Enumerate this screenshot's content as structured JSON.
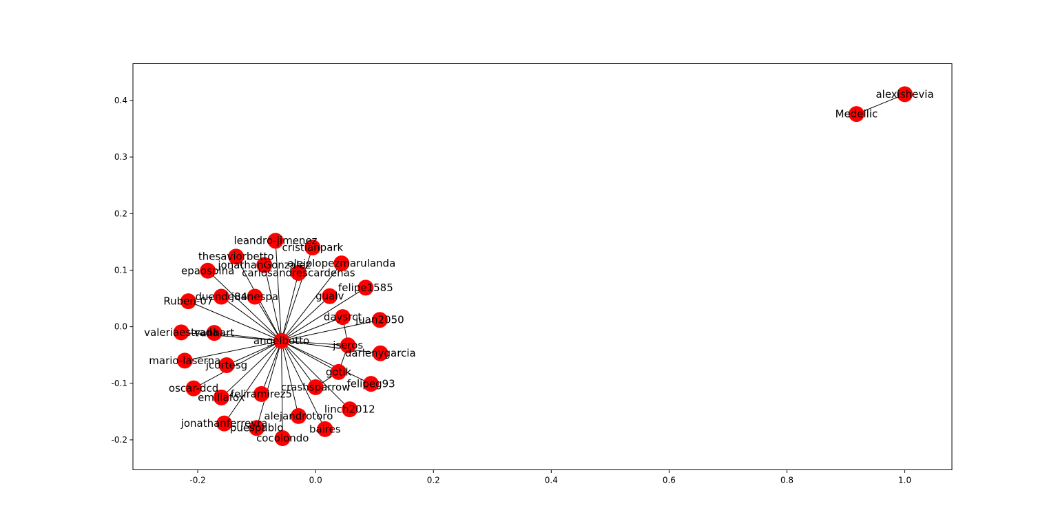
{
  "chart_data": {
    "type": "network",
    "xlim": [
      -0.31,
      1.08
    ],
    "ylim": [
      -0.253,
      0.465
    ],
    "x_ticks": [
      "-0.2",
      "0.0",
      "0.2",
      "0.4",
      "0.6",
      "0.8",
      "1.0"
    ],
    "x_tick_values": [
      -0.2,
      0.0,
      0.2,
      0.4,
      0.6,
      0.8,
      1.0
    ],
    "y_ticks": [
      "-0.2",
      "-0.1",
      "0.0",
      "0.1",
      "0.2",
      "0.3",
      "0.4"
    ],
    "y_tick_values": [
      -0.2,
      -0.1,
      0.0,
      0.1,
      0.2,
      0.3,
      0.4
    ],
    "node_color": "#ff0000",
    "edge_color": "#000000",
    "nodes": [
      {
        "label": "angelbotto",
        "x": -0.058,
        "y": -0.025
      },
      {
        "label": "leandro-jimenez",
        "x": -0.068,
        "y": 0.152
      },
      {
        "label": "cristianpark",
        "x": -0.005,
        "y": 0.14
      },
      {
        "label": "thesaviorbetto",
        "x": -0.135,
        "y": 0.124
      },
      {
        "label": "jonathanGonzalez",
        "x": -0.087,
        "y": 0.109
      },
      {
        "label": "alejolopezmarulanda",
        "x": 0.044,
        "y": 0.112
      },
      {
        "label": "epaospina",
        "x": -0.183,
        "y": 0.099
      },
      {
        "label": "carlosandrescardenas",
        "x": -0.029,
        "y": 0.095
      },
      {
        "label": "felipe1585",
        "x": 0.085,
        "y": 0.069
      },
      {
        "label": "duende84",
        "x": -0.16,
        "y": 0.053
      },
      {
        "label": "juanespa",
        "x": -0.103,
        "y": 0.053
      },
      {
        "label": "gualv",
        "x": 0.024,
        "y": 0.054
      },
      {
        "label": "Ruben-07",
        "x": -0.216,
        "y": 0.045
      },
      {
        "label": "daysrct",
        "x": 0.046,
        "y": 0.017
      },
      {
        "label": "juan2050",
        "x": 0.109,
        "y": 0.012
      },
      {
        "label": "valeriaestrada",
        "x": -0.228,
        "y": -0.01
      },
      {
        "label": "vanhart",
        "x": -0.172,
        "y": -0.011
      },
      {
        "label": "jseros",
        "x": 0.055,
        "y": -0.033
      },
      {
        "label": "darlenygarcia",
        "x": 0.11,
        "y": -0.047
      },
      {
        "label": "mario-laserna",
        "x": -0.222,
        "y": -0.06
      },
      {
        "label": "jcortesg",
        "x": -0.151,
        "y": -0.068
      },
      {
        "label": "gotik",
        "x": 0.039,
        "y": -0.08
      },
      {
        "label": "felipeg93",
        "x": 0.094,
        "y": -0.101
      },
      {
        "label": "oscar-dcd",
        "x": -0.207,
        "y": -0.109
      },
      {
        "label": "crashsparrow",
        "x": 0.0,
        "y": -0.107
      },
      {
        "label": "emiliafox",
        "x": -0.16,
        "y": -0.125
      },
      {
        "label": "feliramirez5",
        "x": -0.092,
        "y": -0.119
      },
      {
        "label": "linch2012",
        "x": 0.058,
        "y": -0.146
      },
      {
        "label": "alejandrotoro",
        "x": -0.029,
        "y": -0.158
      },
      {
        "label": "jonathanferreyra",
        "x": -0.155,
        "y": -0.171
      },
      {
        "label": "puespablo",
        "x": -0.1,
        "y": -0.179
      },
      {
        "label": "baires",
        "x": 0.016,
        "y": -0.181
      },
      {
        "label": "cocolondo",
        "x": -0.056,
        "y": -0.197
      },
      {
        "label": "alexishevia",
        "x": 1.0,
        "y": 0.411
      },
      {
        "label": "Medellic",
        "x": 0.918,
        "y": 0.376
      }
    ],
    "edges": [
      [
        "angelbotto",
        "leandro-jimenez"
      ],
      [
        "angelbotto",
        "cristianpark"
      ],
      [
        "angelbotto",
        "thesaviorbetto"
      ],
      [
        "angelbotto",
        "jonathanGonzalez"
      ],
      [
        "angelbotto",
        "alejolopezmarulanda"
      ],
      [
        "angelbotto",
        "epaospina"
      ],
      [
        "angelbotto",
        "carlosandrescardenas"
      ],
      [
        "angelbotto",
        "felipe1585"
      ],
      [
        "angelbotto",
        "duende84"
      ],
      [
        "angelbotto",
        "juanespa"
      ],
      [
        "angelbotto",
        "gualv"
      ],
      [
        "angelbotto",
        "Ruben-07"
      ],
      [
        "angelbotto",
        "daysrct"
      ],
      [
        "angelbotto",
        "juan2050"
      ],
      [
        "angelbotto",
        "valeriaestrada"
      ],
      [
        "angelbotto",
        "vanhart"
      ],
      [
        "angelbotto",
        "jseros"
      ],
      [
        "angelbotto",
        "darlenygarcia"
      ],
      [
        "angelbotto",
        "mario-laserna"
      ],
      [
        "angelbotto",
        "jcortesg"
      ],
      [
        "angelbotto",
        "gotik"
      ],
      [
        "angelbotto",
        "felipeg93"
      ],
      [
        "angelbotto",
        "oscar-dcd"
      ],
      [
        "angelbotto",
        "crashsparrow"
      ],
      [
        "angelbotto",
        "emiliafox"
      ],
      [
        "angelbotto",
        "feliramirez5"
      ],
      [
        "angelbotto",
        "linch2012"
      ],
      [
        "angelbotto",
        "alejandrotoro"
      ],
      [
        "angelbotto",
        "jonathanferreyra"
      ],
      [
        "angelbotto",
        "puespablo"
      ],
      [
        "angelbotto",
        "baires"
      ],
      [
        "angelbotto",
        "cocolondo"
      ],
      [
        "daysrct",
        "jseros"
      ],
      [
        "jseros",
        "gotik"
      ],
      [
        "gotik",
        "crashsparrow"
      ],
      [
        "alexishevia",
        "Medellic"
      ]
    ]
  }
}
